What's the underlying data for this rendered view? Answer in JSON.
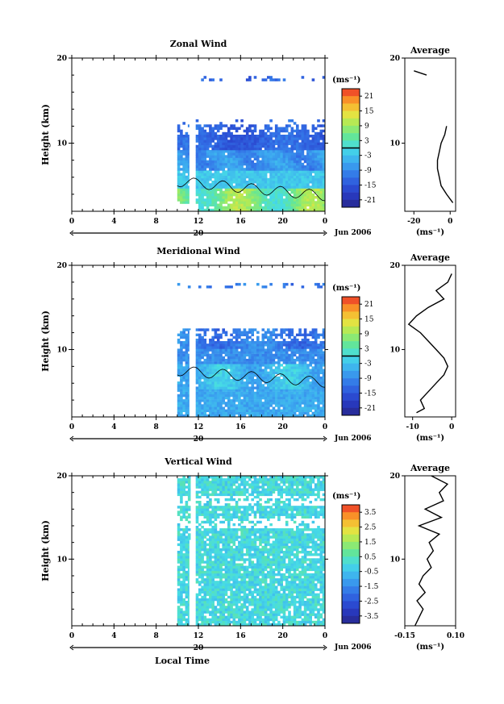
{
  "chart_data": [
    {
      "type": "heatmap",
      "title": "Zonal Wind",
      "ylabel": "Height (km)",
      "y_ticks": [
        "20",
        "10"
      ],
      "ylim": [
        2,
        20
      ],
      "x_ticks": [
        "0",
        "4",
        "8",
        "12",
        "16",
        "20",
        "0"
      ],
      "xlim": [
        0,
        24
      ],
      "date_marker": "20",
      "date_label": "Jun 2006",
      "colorbar": {
        "unit": "(ms⁻¹)",
        "ticks": [
          "21",
          "15",
          "9",
          "3",
          "-3",
          "-9",
          "-15",
          "-21"
        ],
        "range": [
          -24,
          24
        ]
      },
      "average": {
        "title": "Average",
        "x_ticks": [
          "-20",
          "0"
        ],
        "xlim": [
          -25,
          3
        ],
        "y_ticks": [
          "20",
          "10"
        ],
        "xlabel": "(ms⁻¹)",
        "profile_heights": [
          3,
          4,
          5,
          6,
          7,
          8,
          9,
          10,
          11,
          12,
          14,
          15,
          16,
          17,
          18,
          18.5
        ],
        "profile_values": [
          1.5,
          -2,
          -5,
          -6,
          -7,
          -7,
          -6,
          -5,
          -3,
          -2,
          null,
          null,
          null,
          null,
          -13,
          -20
        ]
      }
    },
    {
      "type": "heatmap",
      "title": "Meridional Wind",
      "ylabel": "Height (km)",
      "y_ticks": [
        "20",
        "10"
      ],
      "ylim": [
        2,
        20
      ],
      "x_ticks": [
        "0",
        "4",
        "8",
        "12",
        "16",
        "20",
        "0"
      ],
      "xlim": [
        0,
        24
      ],
      "date_marker": "20",
      "date_label": "Jun 2006",
      "colorbar": {
        "unit": "(ms⁻¹)",
        "ticks": [
          "21",
          "15",
          "9",
          "3",
          "-3",
          "-9",
          "-15",
          "-21"
        ],
        "range": [
          -24,
          24
        ]
      },
      "average": {
        "title": "Average",
        "x_ticks": [
          "-10",
          "0"
        ],
        "xlim": [
          -12,
          1
        ],
        "y_ticks": [
          "20",
          "10"
        ],
        "xlabel": "(ms⁻¹)",
        "profile_heights": [
          2.5,
          3,
          4,
          5,
          6,
          7,
          8,
          9,
          10,
          11,
          12,
          13,
          14,
          15,
          16,
          17,
          18,
          19
        ],
        "profile_values": [
          -9,
          -7,
          -8,
          -6,
          -4,
          -2,
          -1,
          -2,
          -4,
          -6,
          -8,
          -11,
          -9,
          -6,
          -2,
          -4,
          -1,
          0
        ]
      }
    },
    {
      "type": "heatmap",
      "title": "Vertical Wind",
      "ylabel": "Height (km)",
      "y_ticks": [
        "20",
        "10"
      ],
      "ylim": [
        2,
        20
      ],
      "x_ticks": [
        "0",
        "4",
        "8",
        "12",
        "16",
        "20",
        "0"
      ],
      "xlim": [
        0,
        24
      ],
      "date_marker": "20",
      "date_label": "Jun 2006",
      "xlabel": "Local Time",
      "colorbar": {
        "unit": "(ms⁻¹)",
        "ticks": [
          "3.5",
          "2.5",
          "1.5",
          "0.5",
          "-0.5",
          "-1.5",
          "-2.5",
          "-3.5"
        ],
        "range": [
          -4,
          4
        ]
      },
      "average": {
        "title": "Average",
        "x_ticks": [
          "-0.15",
          "0.10"
        ],
        "xlim": [
          -0.15,
          0.1
        ],
        "y_ticks": [
          "20",
          "10"
        ],
        "xlabel": "(ms⁻¹)",
        "profile_heights": [
          2,
          3,
          4,
          5,
          6,
          7,
          8,
          9,
          10,
          11,
          12,
          13,
          14,
          15,
          16,
          17,
          18,
          19,
          20
        ],
        "profile_values": [
          -0.1,
          -0.08,
          -0.06,
          -0.09,
          -0.05,
          -0.08,
          -0.06,
          -0.02,
          -0.04,
          -0.01,
          -0.03,
          0.02,
          -0.08,
          0.03,
          -0.05,
          0.04,
          0.02,
          0.06,
          -0.02
        ]
      }
    }
  ]
}
